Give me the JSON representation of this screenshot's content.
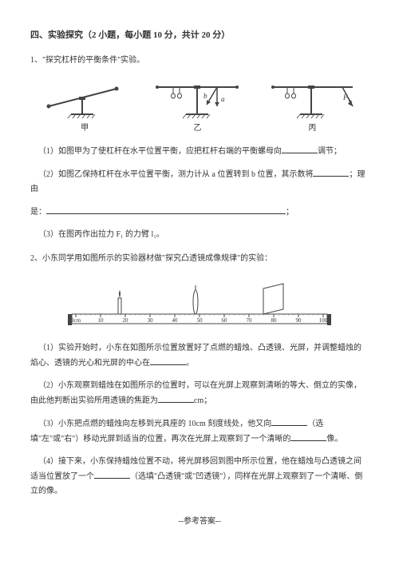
{
  "section": {
    "title": "四、实验探究（2 小题，每小题 10 分，共计 20 分）"
  },
  "q1": {
    "stem": "1、\"探究杠杆的平衡条件\"实验。",
    "labels": {
      "jia": "甲",
      "yi": "乙",
      "bing": "丙"
    },
    "fig_b": "b",
    "fig_a": "a",
    "fig_f1": "F₁",
    "sub1": "（1）如图甲为了使杠杆在水平位置平衡，应把杠杆右端的平衡螺母向",
    "sub1_end": "调节；",
    "sub2a": "（2）如图乙保持杠杆在水平位置平衡，测力计从 a 位置转到 b 位置，其示数将",
    "sub2b": "；理由",
    "sub2c": "是：",
    "sub2d": "；",
    "sub3": "（3）在图丙作出拉力 F₁ 的力臂 l₁。"
  },
  "q2": {
    "stem": "2、小东同学用如图所示的实验器材做\"探究凸透镜成像规律\"的实验：",
    "ruler_ticks": [
      "0cm",
      "10",
      "20",
      "30",
      "40",
      "50",
      "60",
      "70",
      "80",
      "90",
      "100"
    ],
    "sub1": "（1）实验开始时，小东在如图所示位置放置好了点燃的蜡烛、凸透镜、光屏，并调整蜡烛的焰心、透镜的光心和光屏的中心在",
    "sub1_end": "。",
    "sub2a": "（2）小东观察到蜡烛在如图所示的位置时，可以在光屏上观察到清晰的等大、倒立的实像，由此他判断出实验所用透镜的焦距为",
    "sub2b": "cm；",
    "sub3a": "（3）小东把点燃的蜡烛向左移到光具座的 10cm 刻度线处，他又向",
    "sub3b": "（选填\"左\"或\"右\"）移动光屏到适当的位置，再次在光屏上观察到了一个清晰的",
    "sub3c": "像。",
    "sub4a": "（4）接下来，小东保持蜡烛位置不动，将光屏移回到图中所示位置，他在蜡烛与凸透镜之间适当位置放了一个",
    "sub4b": "（选填\"凸透镜\"或\"凹透镜\"），同样在光屏上观察到了一个清晰、倒立的像。"
  },
  "footer": "--参考答案--",
  "colors": {
    "text": "#333333",
    "line": "#444444",
    "hatch": "#555555"
  }
}
